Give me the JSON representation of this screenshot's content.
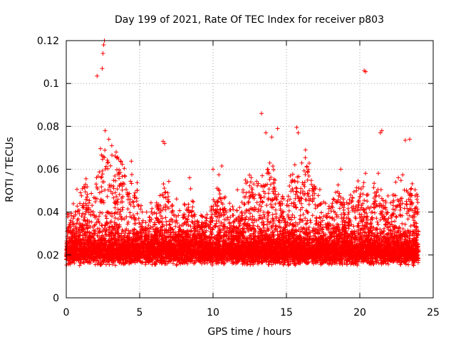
{
  "chart_data": {
    "type": "scatter",
    "title": "Day 199 of 2021, Rate Of TEC Index for receiver p803",
    "xlabel": "GPS time / hours",
    "ylabel": "ROTI / TECUs",
    "xlim": [
      0,
      25
    ],
    "ylim": [
      0,
      0.12
    ],
    "xticks": [
      0,
      5,
      10,
      15,
      20,
      25
    ],
    "xtick_labels": [
      "0",
      "5",
      "10",
      "15",
      "20",
      "25"
    ],
    "yticks": [
      0,
      0.02,
      0.04,
      0.06,
      0.08,
      0.1,
      0.12
    ],
    "ytick_labels": [
      "0",
      "0.02",
      "0.04",
      "0.06",
      "0.08",
      "0.1",
      "0.12"
    ],
    "grid": true,
    "marker": "+",
    "series_color": "#ff0000",
    "data_range_hours": [
      0,
      24
    ],
    "notable_points": [
      {
        "x": 2.1,
        "y": 0.1035
      },
      {
        "x": 2.45,
        "y": 0.107
      },
      {
        "x": 2.5,
        "y": 0.114
      },
      {
        "x": 2.55,
        "y": 0.118
      },
      {
        "x": 2.6,
        "y": 0.12
      },
      {
        "x": 2.65,
        "y": 0.078
      },
      {
        "x": 2.9,
        "y": 0.074
      },
      {
        "x": 3.1,
        "y": 0.071
      },
      {
        "x": 3.4,
        "y": 0.068
      },
      {
        "x": 6.6,
        "y": 0.073
      },
      {
        "x": 6.7,
        "y": 0.072
      },
      {
        "x": 10.6,
        "y": 0.0615
      },
      {
        "x": 13.3,
        "y": 0.086
      },
      {
        "x": 13.6,
        "y": 0.077
      },
      {
        "x": 14.0,
        "y": 0.075
      },
      {
        "x": 14.4,
        "y": 0.079
      },
      {
        "x": 15.7,
        "y": 0.0795
      },
      {
        "x": 15.8,
        "y": 0.077
      },
      {
        "x": 16.3,
        "y": 0.069
      },
      {
        "x": 20.3,
        "y": 0.106
      },
      {
        "x": 20.4,
        "y": 0.1055
      },
      {
        "x": 21.5,
        "y": 0.078
      },
      {
        "x": 21.4,
        "y": 0.077
      },
      {
        "x": 23.4,
        "y": 0.074
      },
      {
        "x": 23.1,
        "y": 0.0735
      },
      {
        "x": 8.4,
        "y": 0.056
      },
      {
        "x": 10.0,
        "y": 0.06
      },
      {
        "x": 18.7,
        "y": 0.06
      }
    ],
    "activity_bursts": [
      {
        "center": 1.3,
        "width": 0.5,
        "peak": 0.045
      },
      {
        "center": 2.6,
        "width": 0.6,
        "peak": 0.065
      },
      {
        "center": 3.5,
        "width": 0.6,
        "peak": 0.06
      },
      {
        "center": 4.4,
        "width": 0.4,
        "peak": 0.05
      },
      {
        "center": 6.7,
        "width": 0.4,
        "peak": 0.05
      },
      {
        "center": 8.4,
        "width": 0.3,
        "peak": 0.045
      },
      {
        "center": 10.5,
        "width": 0.5,
        "peak": 0.045
      },
      {
        "center": 12.6,
        "width": 0.5,
        "peak": 0.05
      },
      {
        "center": 13.8,
        "width": 0.7,
        "peak": 0.055
      },
      {
        "center": 15.8,
        "width": 0.6,
        "peak": 0.06
      },
      {
        "center": 16.5,
        "width": 0.5,
        "peak": 0.055
      },
      {
        "center": 18.4,
        "width": 0.5,
        "peak": 0.045
      },
      {
        "center": 19.8,
        "width": 0.6,
        "peak": 0.05
      },
      {
        "center": 21.3,
        "width": 0.4,
        "peak": 0.05
      },
      {
        "center": 22.6,
        "width": 0.5,
        "peak": 0.05
      },
      {
        "center": 23.5,
        "width": 0.4,
        "peak": 0.05
      }
    ]
  }
}
